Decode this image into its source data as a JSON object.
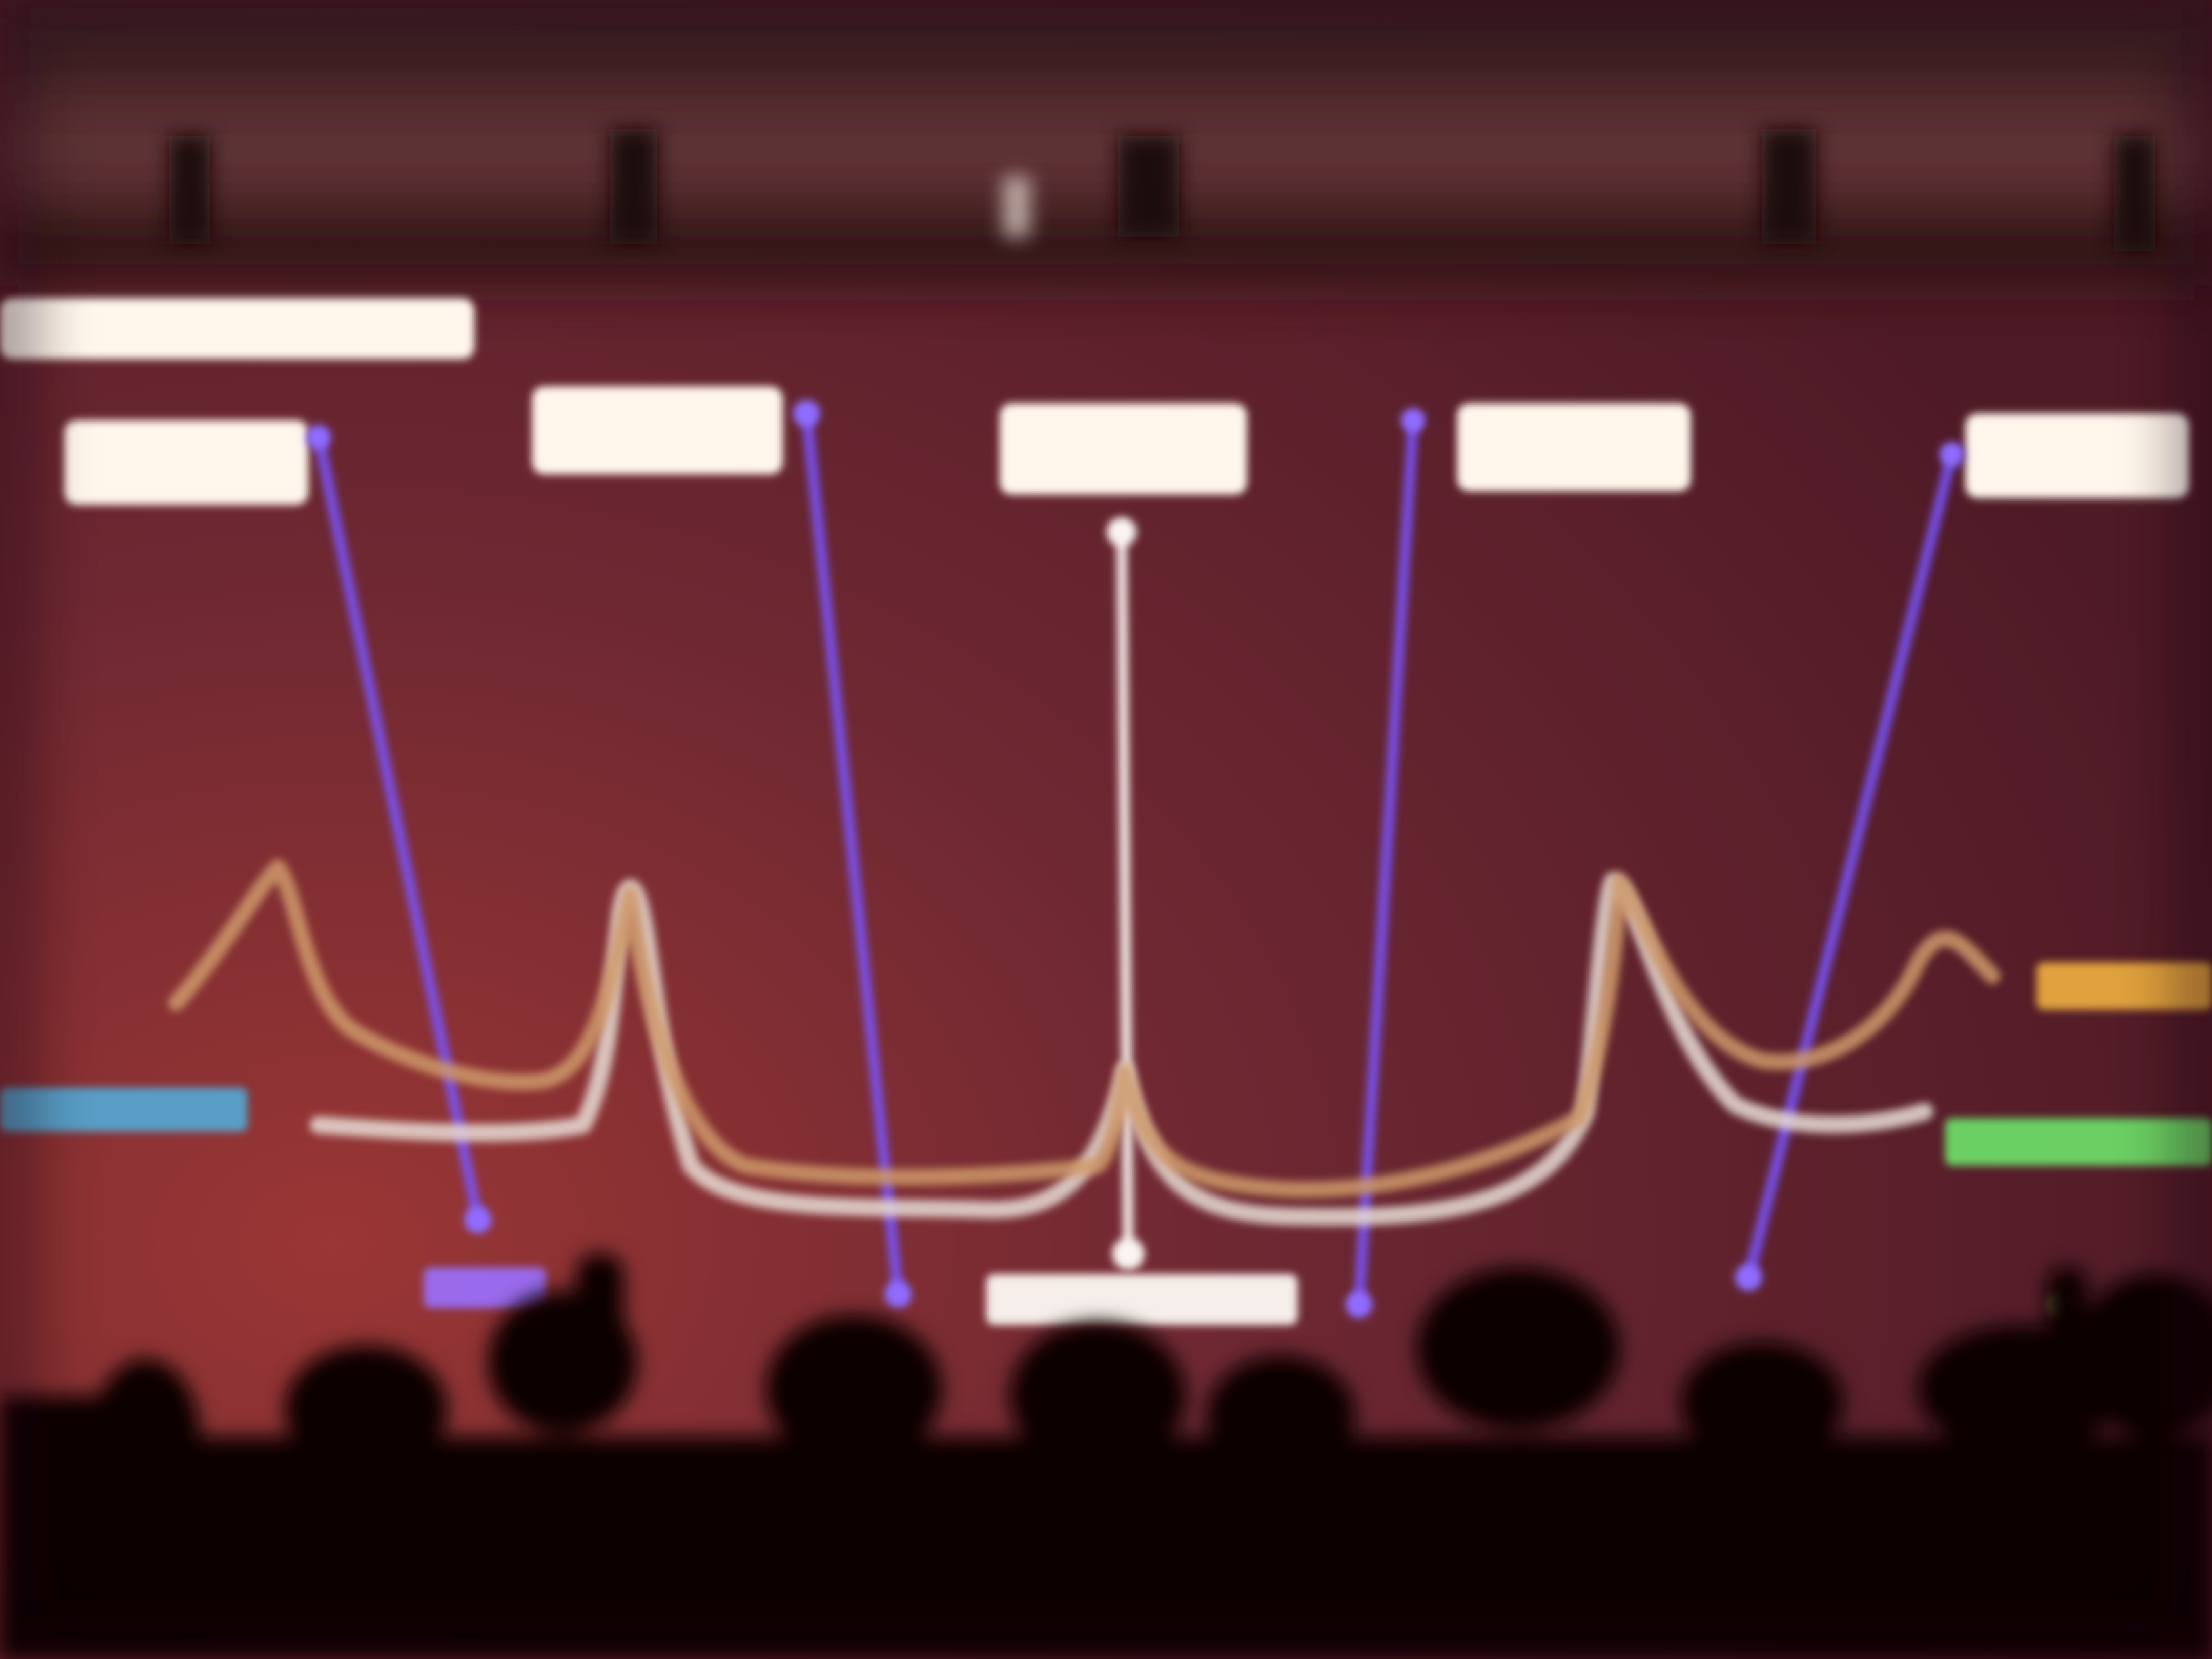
{
  "scene": {
    "description_tag": "blurred-photo-of-projected-spectrum-slide",
    "colors": {
      "screen_main": "#6b2730",
      "screen_left": "#8a2e30",
      "ceiling": "#2a1216",
      "crowd": "#0a0406",
      "label_white": "#fff6ec",
      "pointer_violet": "#7a55ff",
      "pointer_white": "#f4ecea",
      "curve_orange": "#d9a06a",
      "curve_white": "#ece2dc",
      "label_cyan": "#4fb2e0",
      "label_green": "#6fe36a",
      "label_amber": "#f0b040",
      "label_violet": "#9a70ff"
    }
  }
}
